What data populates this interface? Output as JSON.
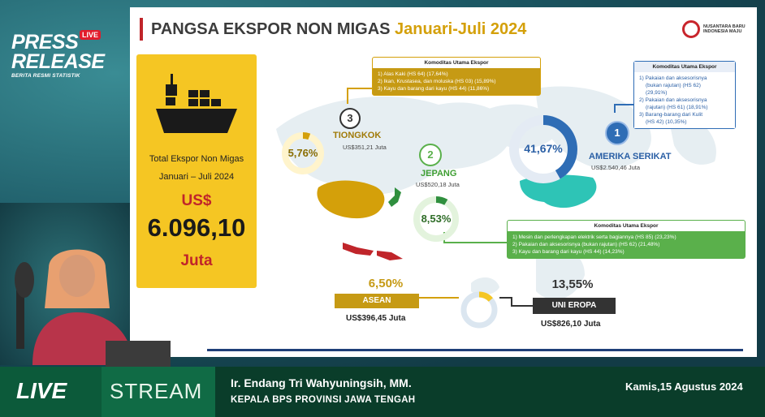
{
  "branding": {
    "press_line1": "PRESS",
    "press_line2": "RELEASE",
    "live_badge": "LIVE",
    "subtitle": "BERITA RESMI STATISTIK"
  },
  "slide": {
    "title_main": "PANGSA EKSPOR NON MIGAS",
    "title_period": "Januari-Juli 2024",
    "logo_text": "NUSANTARA BARU INDONESIA MAJU",
    "total": {
      "label1": "Total Ekspor  Non Migas",
      "label2": "Januari – Juli 2024",
      "currency": "US$",
      "value": "6.096,10",
      "unit": "Juta"
    },
    "countries": [
      {
        "rank": "1",
        "name": "AMERIKA SERIKAT",
        "value": "US$2.540,46 Juta",
        "share": "41,67%",
        "share_pct": 41.67
      },
      {
        "rank": "2",
        "name": "JEPANG",
        "value": "US$520,18 Juta",
        "share": "8,53%",
        "share_pct": 8.53
      },
      {
        "rank": "3",
        "name": "TIONGKOK",
        "value": "US$351,21 Juta",
        "share": "5,76%",
        "share_pct": 5.76
      }
    ],
    "asean": {
      "name": "ASEAN",
      "share": "6,50%",
      "value": "US$396,45 Juta",
      "share_pct": 6.5
    },
    "eu": {
      "name": "UNI EROPA",
      "share": "13,55%",
      "value": "US$826,10 Juta",
      "share_pct": 13.55
    },
    "box_tiongkok": {
      "header": "Komoditas Utama Ekspor",
      "items": [
        "1) Alas Kaki (HS 64) (17,64%)",
        "2) Ikan, Krustasea, dan moluska (HS 03) (15,89%)",
        "3) Kayu dan barang dari kayu (HS 44) (11,86%)"
      ]
    },
    "box_as": {
      "header": "Komoditas Utama Ekspor",
      "items": [
        "1) Pakaian dan aksesorisnya",
        "(bukan rajutan) (HS 62)",
        "(29,91%)",
        "2) Pakaian dan aksesorisnya",
        "(rajutan) (HS 61) (18,91%)",
        "3) Barang-barang dari Kulit",
        "(HS 42) (10,35%)"
      ]
    },
    "box_jepang": {
      "header": "Komoditas Utama Ekspor",
      "items": [
        "1) Mesin dan perlengkapan elektrik serta bagiannya (HS 85) (23,23%)",
        "2) Pakaian dan aksesorisnya (bukan rajutan) (HS 62) (21,48%)",
        "3) Kayu dan barang dari kayu (HS 44) (14,23%)"
      ]
    }
  },
  "lower_third": {
    "live": "LIVE",
    "stream": "STREAM",
    "name": "Ir. Endang Tri Wahyuningsih, MM.",
    "role": "KEPALA BPS PROVINSI JAWA TENGAH",
    "date": "Kamis,15 Agustus 2024"
  },
  "colors": {
    "yellow": "#f5c623",
    "gold": "#c69a14",
    "blue": "#2f6db5",
    "green": "#5ab04b",
    "red": "#c0252a"
  }
}
